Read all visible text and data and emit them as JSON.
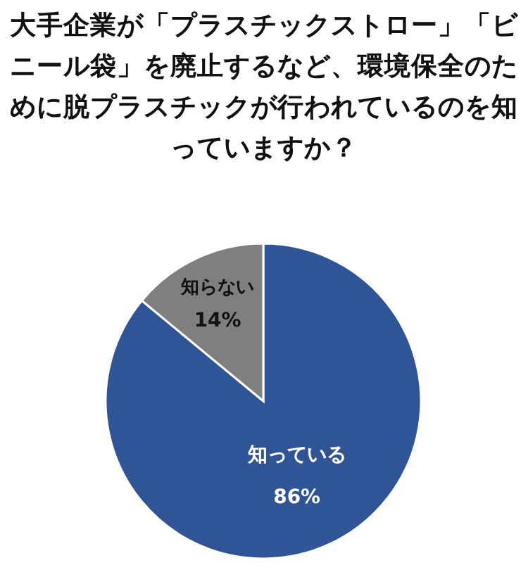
{
  "chart_data": {
    "type": "pie",
    "title": "大手企業が「プラスチックストロー」「ビニール袋」を廃止するなど、環境保全のために脱プラスチックが行われているのを知っていますか？",
    "categories": [
      "知っている",
      "知らない"
    ],
    "values": [
      86,
      14
    ],
    "value_labels": [
      "86%",
      "14%"
    ],
    "colors": [
      "#2f5597",
      "#7f7f7f"
    ]
  }
}
